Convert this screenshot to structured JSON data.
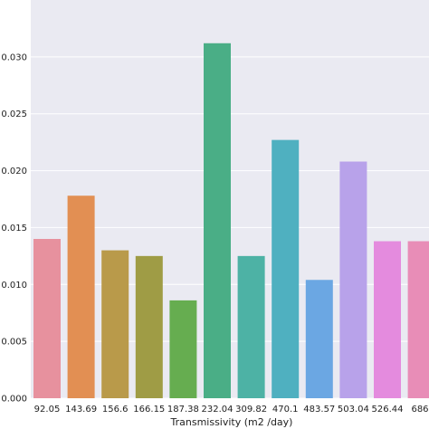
{
  "chart_data": {
    "type": "bar",
    "xlabel": "Transmissivity (m2 /day)",
    "ylabel": "",
    "ylim": [
      0,
      0.035
    ],
    "yticks": [
      0.0,
      0.005,
      0.01,
      0.015,
      0.02,
      0.025,
      0.03
    ],
    "ytick_labels": [
      "0.000",
      "0.005",
      "0.010",
      "0.015",
      "0.020",
      "0.025",
      "0.030"
    ],
    "grid": true,
    "categories": [
      "92.05",
      "143.69",
      "156.6",
      "166.15",
      "187.38",
      "232.04",
      "309.82",
      "470.1",
      "483.57",
      "503.04",
      "526.44",
      "686."
    ],
    "values": [
      0.014,
      0.0178,
      0.013,
      0.0125,
      0.0086,
      0.0312,
      0.0125,
      0.0227,
      0.0104,
      0.0208,
      0.0138,
      0.0138
    ],
    "colors": [
      "#e7919e",
      "#e28f53",
      "#b99a4a",
      "#9f9c45",
      "#66ad50",
      "#4aae86",
      "#4db2a5",
      "#4fb0c0",
      "#6ba7e3",
      "#b8a2ea",
      "#e48bde",
      "#e88db7"
    ],
    "background": "#eaeaf2"
  }
}
